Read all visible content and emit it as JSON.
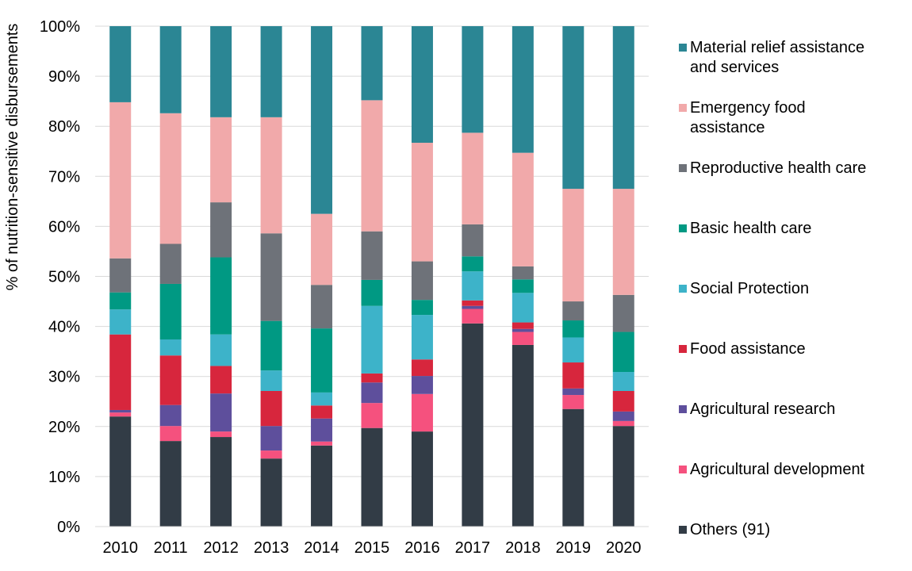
{
  "chart_data": {
    "type": "bar",
    "stacked": true,
    "percent": true,
    "title": "",
    "xlabel": "",
    "ylabel": "% of nutrition-sensitive disbursements",
    "ylim": [
      0,
      100
    ],
    "yticks": [
      "0%",
      "10%",
      "20%",
      "30%",
      "40%",
      "50%",
      "60%",
      "70%",
      "80%",
      "90%",
      "100%"
    ],
    "grid": "horizontal",
    "legend_position": "right",
    "categories": [
      "2010",
      "2011",
      "2012",
      "2013",
      "2014",
      "2015",
      "2016",
      "2017",
      "2018",
      "2019",
      "2020"
    ],
    "series": [
      {
        "name": "Others (91)",
        "color": "#323C46",
        "values": [
          22.0,
          17.1,
          17.9,
          13.6,
          16.2,
          19.7,
          19.0,
          40.6,
          36.3,
          23.5,
          20.1
        ]
      },
      {
        "name": "Agricultural development",
        "color": "#F5517E",
        "values": [
          0.8,
          3.0,
          1.1,
          1.6,
          0.8,
          5.0,
          7.5,
          2.9,
          2.6,
          2.8,
          1.0
        ]
      },
      {
        "name": "Agricultural research",
        "color": "#5E4F9C",
        "values": [
          0.5,
          4.2,
          7.6,
          4.9,
          4.6,
          4.1,
          3.6,
          0.6,
          0.6,
          1.3,
          1.9
        ]
      },
      {
        "name": "Food assistance",
        "color": "#D7263D",
        "values": [
          15.1,
          9.9,
          5.5,
          7.0,
          2.6,
          1.8,
          3.3,
          1.1,
          1.3,
          5.2,
          4.1
        ]
      },
      {
        "name": "Social Protection",
        "color": "#3DB3C9",
        "values": [
          5.0,
          3.2,
          6.3,
          4.1,
          2.6,
          13.5,
          8.9,
          5.8,
          5.9,
          5.0,
          3.8
        ]
      },
      {
        "name": "Basic health care",
        "color": "#009983",
        "values": [
          3.4,
          11.1,
          15.4,
          9.9,
          12.8,
          5.2,
          3.0,
          3.0,
          2.7,
          3.4,
          8.0
        ]
      },
      {
        "name": "Reproductive health care",
        "color": "#6E7279",
        "values": [
          6.8,
          8.0,
          11.0,
          17.5,
          8.7,
          9.7,
          7.7,
          6.4,
          2.6,
          3.8,
          7.4
        ]
      },
      {
        "name": "Emergency food assistance",
        "color": "#F1A9AA",
        "values": [
          31.2,
          26.1,
          17.0,
          23.2,
          14.2,
          26.2,
          23.7,
          18.3,
          22.7,
          22.5,
          21.2
        ]
      },
      {
        "name": "Material relief assistance and services",
        "color": "#2B8694",
        "values": [
          15.2,
          17.4,
          18.2,
          18.2,
          37.5,
          14.8,
          23.3,
          21.3,
          25.3,
          32.5,
          32.5
        ]
      }
    ],
    "legend_order": [
      "Material relief assistance and services",
      "Emergency food assistance",
      "Reproductive health care",
      "Basic health care",
      "Social Protection",
      "Food assistance",
      "Agricultural research",
      "Agricultural development",
      "Others (91)"
    ]
  }
}
